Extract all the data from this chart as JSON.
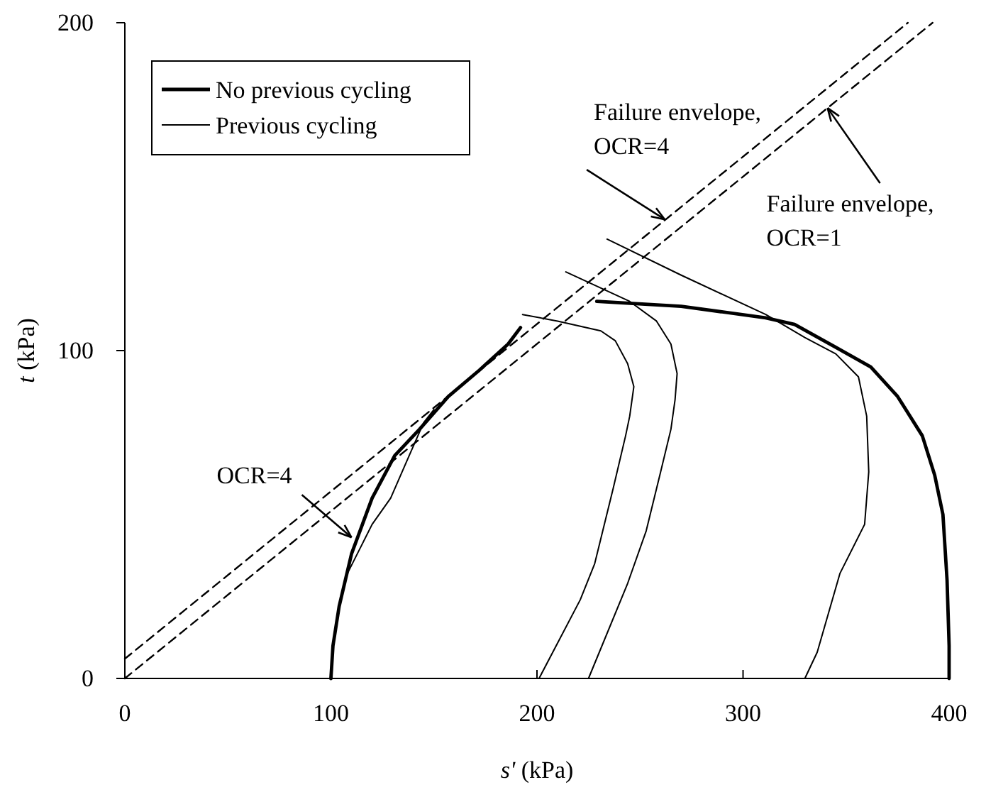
{
  "chart_data": {
    "type": "line",
    "xlabel": "s' (kPa)",
    "ylabel": "t (kPa)",
    "xlim": [
      0,
      400
    ],
    "ylim": [
      0,
      200
    ],
    "xticks": [
      0,
      100,
      200,
      300,
      400
    ],
    "yticks": [
      0,
      100,
      200
    ],
    "legend": "top left",
    "grid": false,
    "line_style": "solid",
    "marker": "none",
    "series": [
      {
        "name": "No previous cycling",
        "color": "#000000",
        "x": [
          100,
          101,
          104,
          110,
          120,
          131,
          143,
          157,
          172,
          186,
          192,
          null,
          229,
          270,
          311,
          325,
          345,
          362,
          375,
          387,
          393,
          397,
          399,
          400,
          400
        ],
        "values": [
          0,
          10,
          22,
          38,
          55,
          68,
          76,
          86,
          94,
          102,
          107,
          null,
          115,
          113.5,
          110,
          108,
          101,
          95,
          86,
          74,
          62,
          50,
          30,
          10,
          0
        ]
      },
      {
        "name": "Previous cycling",
        "color": "#000000",
        "x": [
          108,
          120,
          129,
          138,
          145,
          150,
          null,
          193,
          210,
          231,
          238,
          244,
          247,
          245,
          243,
          237,
          228,
          221,
          201,
          null,
          214,
          245,
          258,
          265,
          268,
          267,
          265,
          260,
          253,
          244,
          225,
          null,
          234,
          270,
          311,
          330,
          345,
          356,
          360,
          361,
          359,
          347,
          336,
          330
        ],
        "values": [
          32,
          47,
          55,
          68,
          78,
          82,
          null,
          111,
          109,
          106,
          103,
          96,
          89,
          80,
          74,
          58,
          35,
          24,
          0,
          null,
          124,
          115,
          109,
          102,
          93,
          85,
          76,
          63,
          45,
          29,
          0,
          null,
          134,
          123,
          111,
          104,
          99,
          92,
          80,
          63,
          47,
          32,
          8,
          0
        ]
      },
      {
        "color": "#000000",
        "line_style": "dashed",
        "x": [
          0,
          380
        ],
        "values": [
          6,
          200
        ]
      },
      {
        "color": "#000000",
        "line_style": "dashed",
        "x": [
          0,
          392
        ],
        "values": [
          0,
          200
        ]
      }
    ],
    "annotations": [
      {
        "text": "Failure envelope,\nOCR=4",
        "x": 262,
        "y": 140
      },
      {
        "text": "Failure envelope,\nOCR=1",
        "x": 341,
        "y": 174
      },
      {
        "text": "OCR=4",
        "x": 110,
        "y": 43
      }
    ]
  }
}
